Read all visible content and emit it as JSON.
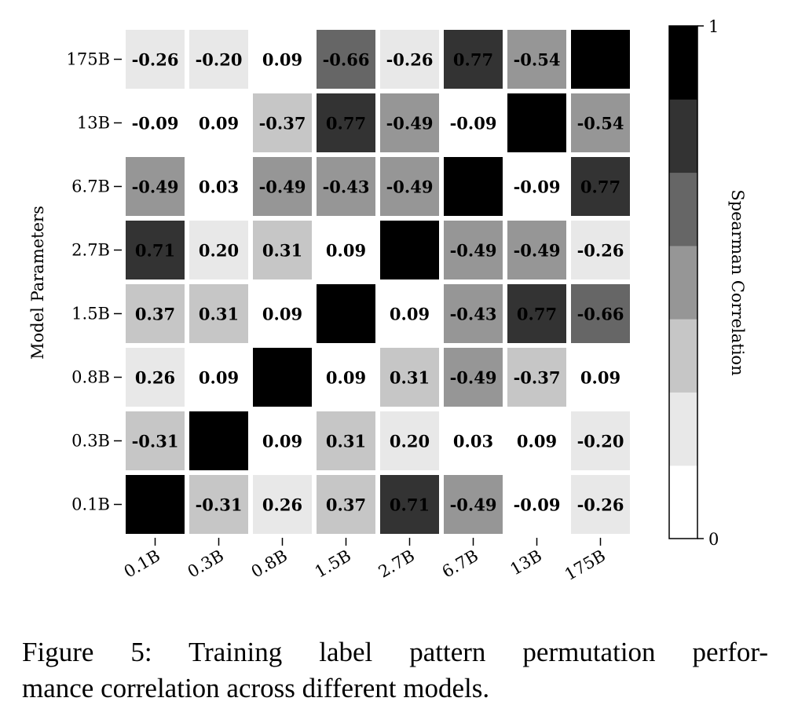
{
  "chart_data": {
    "type": "heatmap",
    "title": "",
    "xlabel": "",
    "ylabel": "Model Parameters",
    "x_categories": [
      "0.1B",
      "0.3B",
      "0.8B",
      "1.5B",
      "2.7B",
      "6.7B",
      "13B",
      "175B"
    ],
    "y_categories": [
      "175B",
      "13B",
      "6.7B",
      "2.7B",
      "1.5B",
      "0.8B",
      "0.3B",
      "0.1B"
    ],
    "values": [
      [
        -0.26,
        -0.2,
        0.09,
        -0.66,
        -0.26,
        0.77,
        -0.54,
        1
      ],
      [
        -0.09,
        0.09,
        -0.37,
        0.77,
        -0.49,
        -0.09,
        1,
        -0.54
      ],
      [
        -0.49,
        0.03,
        -0.49,
        -0.43,
        -0.49,
        1,
        -0.09,
        0.77
      ],
      [
        0.71,
        0.2,
        0.31,
        0.09,
        1,
        -0.49,
        -0.49,
        -0.26
      ],
      [
        0.37,
        0.31,
        0.09,
        1,
        0.09,
        -0.43,
        0.77,
        -0.66
      ],
      [
        0.26,
        0.09,
        1,
        0.09,
        0.31,
        -0.49,
        -0.37,
        0.09
      ],
      [
        -0.31,
        1,
        0.09,
        0.31,
        0.2,
        0.03,
        0.09,
        -0.2
      ],
      [
        1,
        -0.31,
        0.26,
        0.37,
        0.71,
        -0.49,
        -0.09,
        -0.26
      ]
    ],
    "color_mapping": "absolute value",
    "colorbar": {
      "label": "Spearman Correlation",
      "range": [
        0,
        1
      ],
      "tick_labels": [
        "0",
        "1"
      ],
      "levels": [
        "#ffffff",
        "#e8e8e8",
        "#c6c6c6",
        "#969696",
        "#666666",
        "#333333",
        "#000000"
      ]
    }
  },
  "caption": {
    "line1": "Figure 5:  Training label pattern permutation perfor-",
    "line2": "mance correlation across different models."
  }
}
